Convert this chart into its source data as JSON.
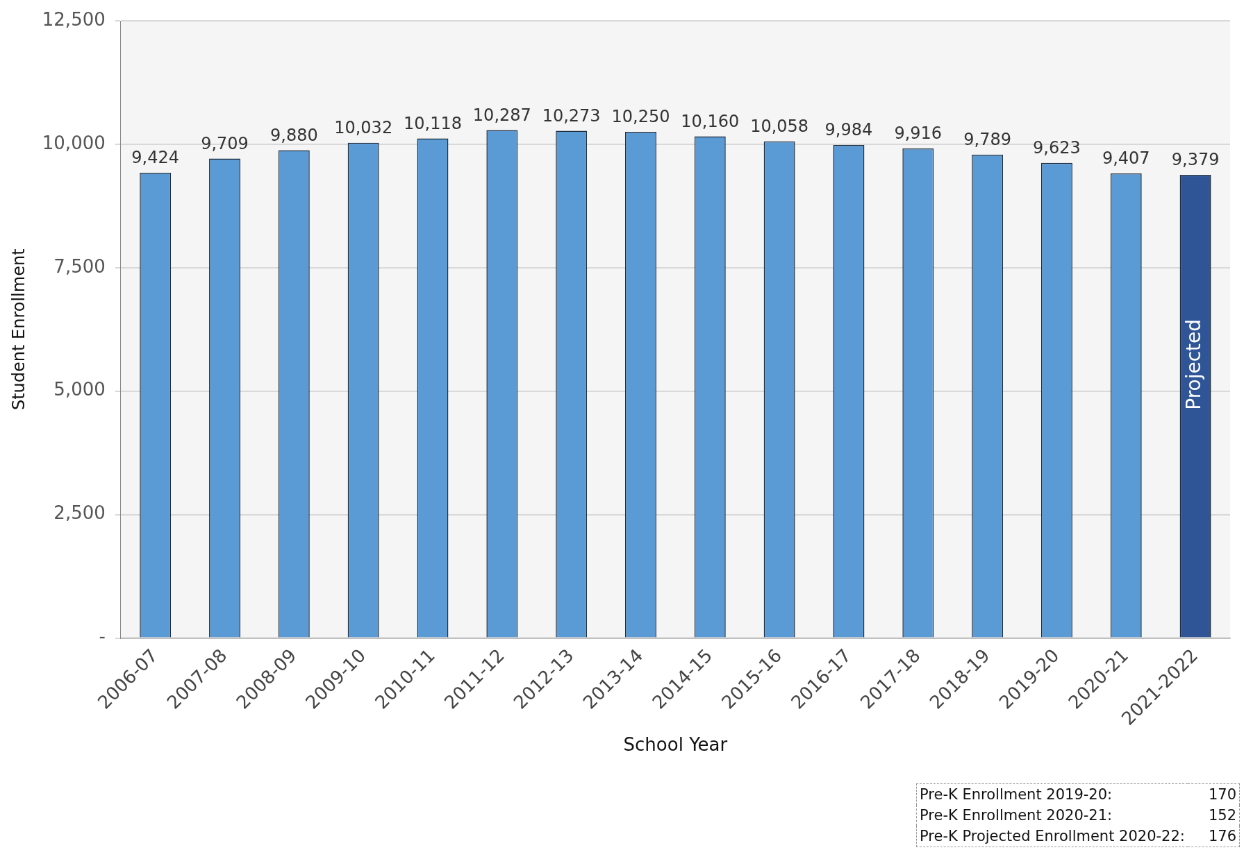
{
  "chart_data": {
    "type": "bar",
    "xlabel": "School Year",
    "ylabel": "Student Enrollment",
    "categories": [
      "2006-07",
      "2007-08",
      "2008-09",
      "2009-10",
      "2010-11",
      "2011-12",
      "2012-13",
      "2013-14",
      "2014-15",
      "2015-16",
      "2016-17",
      "2017-18",
      "2018-19",
      "2019-20",
      "2020-21",
      "2021-2022"
    ],
    "values": [
      9424,
      9709,
      9880,
      10032,
      10118,
      10287,
      10273,
      10250,
      10160,
      10058,
      9984,
      9916,
      9789,
      9623,
      9407,
      9379
    ],
    "colors": [
      "#5b9bd5",
      "#5b9bd5",
      "#5b9bd5",
      "#5b9bd5",
      "#5b9bd5",
      "#5b9bd5",
      "#5b9bd5",
      "#5b9bd5",
      "#5b9bd5",
      "#5b9bd5",
      "#5b9bd5",
      "#5b9bd5",
      "#5b9bd5",
      "#5b9bd5",
      "#5b9bd5",
      "#2f5597"
    ],
    "ylim": [
      0,
      12500
    ],
    "yticks": [
      {
        "value": 0,
        "label": "-"
      },
      {
        "value": 2500,
        "label": "2,500"
      },
      {
        "value": 5000,
        "label": "5,000"
      },
      {
        "value": 7500,
        "label": "7,500"
      },
      {
        "value": 10000,
        "label": "10,000"
      },
      {
        "value": 12500,
        "label": "12,500"
      }
    ],
    "value_labels": [
      "9,424",
      "9,709",
      "9,880",
      "10,032",
      "10,118",
      "10,287",
      "10,273",
      "10,250",
      "10,160",
      "10,058",
      "9,984",
      "9,916",
      "9,789",
      "9,623",
      "9,407",
      "9,379"
    ],
    "grid": "y",
    "legend": false,
    "annotations": [
      "Projected",
      "Pre-K Enrollment 2019-20: 170",
      "Pre-K Enrollment 2020-21: 152",
      "Pre-K Projected Enrollment 2020-22: 176"
    ]
  }
}
